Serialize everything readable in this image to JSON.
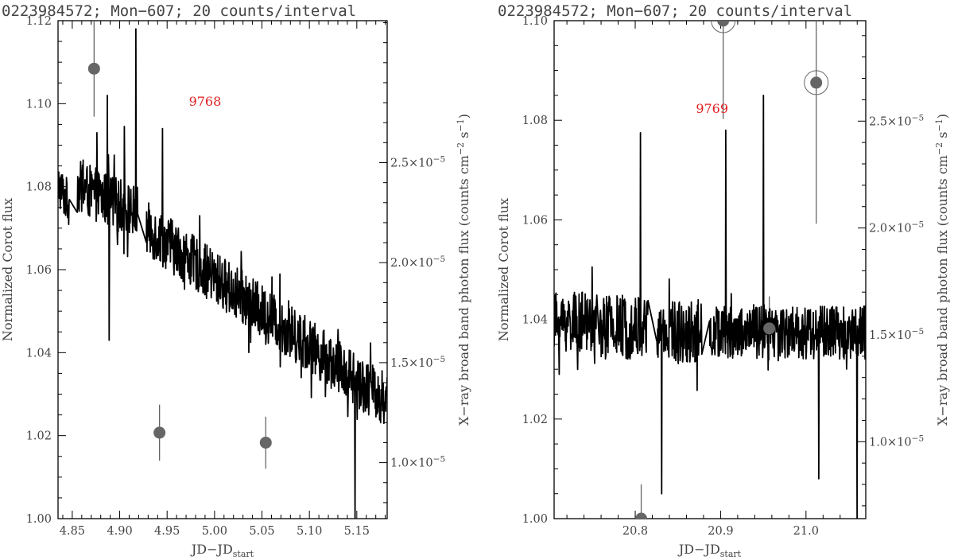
{
  "colors": {
    "curve": "#000000",
    "xray_marker": "#666666",
    "annotation": "#e02020",
    "text": "#444444"
  },
  "chart_data": [
    {
      "type": "line",
      "title": "0223984572; Mon−607; 20 counts/interval",
      "xlabel": "JD−JD",
      "xlabel_sub": "start",
      "ylabel": "Normalized Corot flux",
      "y2label": "X−ray broad band photon flux (counts cm",
      "y2label_sup1": "−2",
      "y2label_mid": " s",
      "y2label_sup2": "−1",
      "y2label_end": ")",
      "xlim": [
        4.835,
        5.182
      ],
      "ylim": [
        1.0,
        1.12
      ],
      "y2lim": [
        7.2e-06,
        3.21e-05
      ],
      "grid": false,
      "xticks": [
        4.85,
        4.9,
        4.95,
        5.0,
        5.05,
        5.1,
        5.15
      ],
      "xtick_labels": [
        "4.85",
        "4.90",
        "4.95",
        "5.00",
        "5.05",
        "5.10",
        "5.15"
      ],
      "yticks": [
        1.0,
        1.02,
        1.04,
        1.06,
        1.08,
        1.1,
        1.12
      ],
      "ytick_labels": [
        "1.00",
        "1.02",
        "1.04",
        "1.06",
        "1.08",
        "1.10",
        "1.12"
      ],
      "y2ticks": [
        1e-05,
        1.5e-05,
        2e-05,
        2.5e-05
      ],
      "y2tick_labels": [
        {
          "m": "1.0×10",
          "e": "−5"
        },
        {
          "m": "1.5×10",
          "e": "−5"
        },
        {
          "m": "2.0×10",
          "e": "−5"
        },
        {
          "m": "2.5×10",
          "e": "−5"
        }
      ],
      "annotation": {
        "text": "9768",
        "x": 4.99,
        "y": 1.0995
      },
      "series": [
        {
          "kind": "light_curve",
          "segments": [
            {
              "x0": 4.835,
              "x1": 4.847,
              "a": 1.0805,
              "b": -0.4,
              "noise": 0.0055
            },
            {
              "x0": 4.855,
              "x1": 4.919,
              "a": 1.08,
              "b": -0.1,
              "noise": 0.0065
            },
            {
              "x0": 4.928,
              "x1": 5.182,
              "a": 1.07,
              "b": -0.165,
              "noise": 0.0065
            }
          ],
          "spikes": [
            {
              "x": 4.876,
              "y": 1.093
            },
            {
              "x": 4.887,
              "y": 1.102
            },
            {
              "x": 4.889,
              "y": 1.043
            },
            {
              "x": 4.905,
              "y": 1.0945
            },
            {
              "x": 4.917,
              "y": 1.118
            },
            {
              "x": 4.945,
              "y": 1.094
            },
            {
              "x": 5.148,
              "y": 1.0
            }
          ]
        },
        {
          "kind": "xray_points",
          "points": [
            {
              "x": 4.873,
              "y": 2.97e-05,
              "err": 2.4e-06,
              "circled": false
            },
            {
              "x": 4.942,
              "y": 1.15e-05,
              "err": 1.4e-06,
              "circled": false
            },
            {
              "x": 5.054,
              "y": 1.1e-05,
              "err": 1.3e-06,
              "circled": false
            }
          ]
        }
      ]
    },
    {
      "type": "line",
      "title": "0223984572; Mon−607; 20 counts/interval",
      "xlabel": "JD−JD",
      "xlabel_sub": "start",
      "ylabel": "Normalized Corot flux",
      "y2label": "X−ray broad band photon flux (counts cm",
      "y2label_sup1": "−2",
      "y2label_mid": " s",
      "y2label_sup2": "−1",
      "y2label_end": ")",
      "xlim": [
        20.705,
        21.07
      ],
      "ylim": [
        1.0,
        1.1
      ],
      "y2lim": [
        6.4e-06,
        2.97e-05
      ],
      "grid": false,
      "xticks": [
        20.8,
        20.9,
        21.0
      ],
      "xtick_labels": [
        "20.8",
        "20.9",
        "21.0"
      ],
      "yticks": [
        1.0,
        1.02,
        1.04,
        1.06,
        1.08,
        1.1
      ],
      "ytick_labels": [
        "1.00",
        "1.02",
        "1.04",
        "1.06",
        "1.08",
        "1.10"
      ],
      "y2ticks": [
        1e-05,
        1.5e-05,
        2e-05,
        2.5e-05
      ],
      "y2tick_labels": [
        {
          "m": "1.0×10",
          "e": "−5"
        },
        {
          "m": "1.5×10",
          "e": "−5"
        },
        {
          "m": "2.0×10",
          "e": "−5"
        },
        {
          "m": "2.5×10",
          "e": "−5"
        }
      ],
      "annotation": {
        "text": "9769",
        "x": 20.89,
        "y": 1.0815
      },
      "series": [
        {
          "kind": "light_curve",
          "segments": [
            {
              "x0": 20.705,
              "x1": 20.755,
              "a": 1.0395,
              "b": 0.0,
              "noise": 0.006
            },
            {
              "x0": 20.758,
              "x1": 20.815,
              "a": 1.0385,
              "b": 0.0,
              "noise": 0.0065
            },
            {
              "x0": 20.825,
              "x1": 20.878,
              "a": 1.0375,
              "b": 0.0,
              "noise": 0.0065
            },
            {
              "x0": 20.887,
              "x1": 21.07,
              "a": 1.0375,
              "b": 0.0,
              "noise": 0.0055
            }
          ],
          "spikes": [
            {
              "x": 20.806,
              "y": 1.0775
            },
            {
              "x": 20.831,
              "y": 1.005
            },
            {
              "x": 20.906,
              "y": 1.078
            },
            {
              "x": 20.95,
              "y": 1.085
            },
            {
              "x": 21.015,
              "y": 1.008
            },
            {
              "x": 21.06,
              "y": 1.0
            }
          ]
        },
        {
          "kind": "xray_points",
          "points": [
            {
              "x": 20.807,
              "y": 6.4e-06,
              "err": 1.6e-06,
              "circled": false
            },
            {
              "x": 20.903,
              "y": 2.97e-05,
              "err": 4.6e-06,
              "circled": true
            },
            {
              "x": 20.957,
              "y": 1.53e-05,
              "err": 1.5e-06,
              "circled": false
            },
            {
              "x": 21.012,
              "y": 2.68e-05,
              "err": 6.6e-06,
              "circled": true
            }
          ]
        }
      ]
    }
  ]
}
